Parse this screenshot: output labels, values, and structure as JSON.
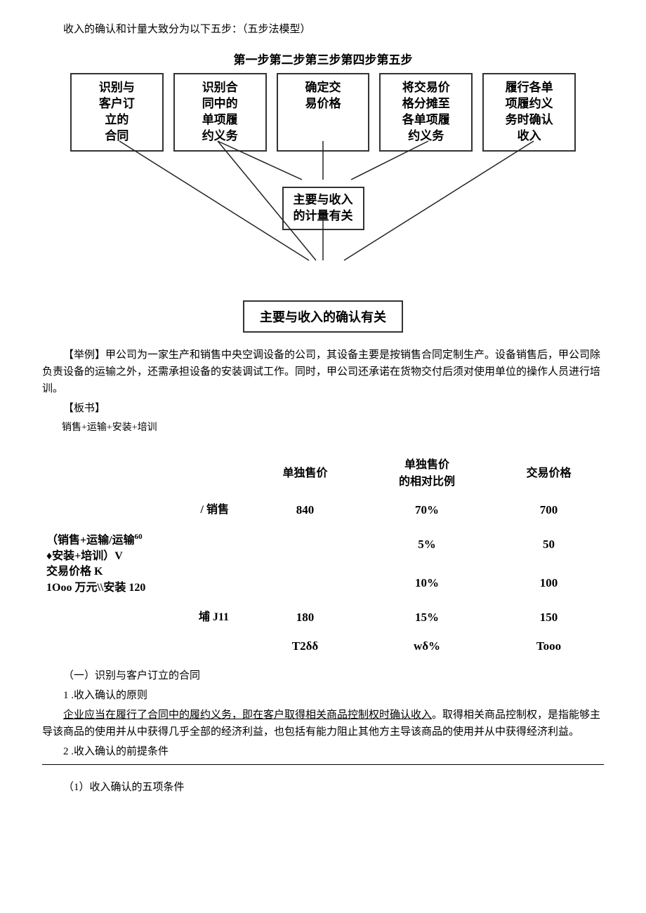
{
  "intro": "收入的确认和计量大致分为以下五步：（五步法模型）",
  "diagram": {
    "steps_header": "第一步第二步第三步第四步第五步",
    "boxes": [
      "识别与\n客户订\n立的\n合同",
      "识别合\n同中的\n单项履\n约义务",
      "确定交\n易价格",
      "将交易价\n格分摊至\n各单项履\n约义务",
      "履行各单\n项履约义\n务时确认\n收入"
    ],
    "middle_box": "主要与收入\n的计量有关",
    "bottom_box": "主要与收入的确认有关",
    "line_color": "#222222",
    "box_border_color": "#333333"
  },
  "example_label": "【举例】",
  "example_text": "甲公司为一家生产和销售中央空调设备的公司，其设备主要是按销售合同定制生产。设备销售后，甲公司除负责设备的运输之外，还需承担设备的安装调试工作。同时，甲公司还承诺在货物交付后须对使用单位的操作人员进行培训。",
  "board_label": "【板书】",
  "board_line": "销售+运输+安装+培训",
  "price_table": {
    "headers": [
      "",
      "单独售价",
      "单独售价\n的相对比例",
      "交易价格"
    ],
    "rows": [
      {
        "label": "/ 销售",
        "c1": "840",
        "c2": "70%",
        "c3": "700"
      },
      {
        "label_html": "（销售+运输/运输<span class='sup'>60</span><br>♦安装+培训）V<br>交易价格 K<br>1Ooo 万元\\\\安装 120",
        "c1": "",
        "c1b": "",
        "c2": "5%",
        "c3": "50"
      },
      {
        "label": "",
        "c1": "",
        "c2": "10%",
        "c3": "100"
      },
      {
        "label": "埔 J11",
        "c1": "180",
        "c2": "15%",
        "c3": "150"
      },
      {
        "label": "",
        "c1": "T2δδ",
        "c2": "wδ%",
        "c3": "Tooo"
      }
    ]
  },
  "section1_title": "（一）识别与客户订立的合同",
  "point1": "1 .收入确认的原则",
  "para1_underlined": "企业应当在履行了合同中的履约义务，即在客户取得相关商品控制权时确认收入",
  "para1_rest": "。取得相关商品控制权，是指能够主导该商品的使用并从中获得几乎全部的经济利益，也包括有能力阻止其他方主导该商品的使用并从中获得经济利益。",
  "point2": "2 .收入确认的前提条件",
  "point2_sub": "（1）收入确认的五项条件"
}
